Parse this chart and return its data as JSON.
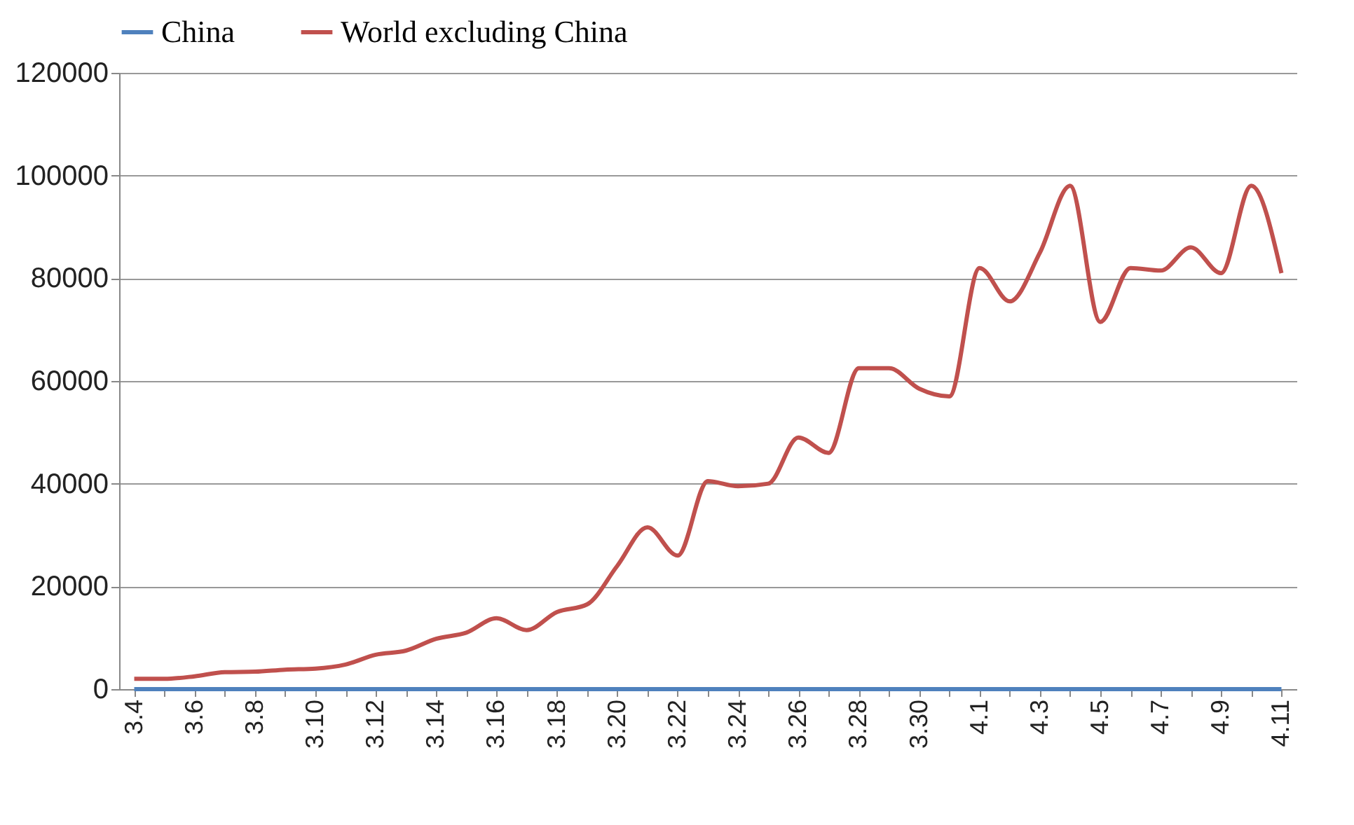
{
  "chart_data": {
    "type": "line",
    "categories": [
      "3.4",
      null,
      "3.6",
      null,
      "3.8",
      null,
      "3.10",
      null,
      "3.12",
      null,
      "3.14",
      null,
      "3.16",
      null,
      "3.18",
      null,
      "3.20",
      null,
      "3.22",
      null,
      "3.24",
      null,
      "3.26",
      null,
      "3.28",
      null,
      "3.30",
      null,
      "4.1",
      null,
      "4.3",
      null,
      "4.5",
      null,
      "4.7",
      null,
      "4.9",
      null,
      "4.11"
    ],
    "series": [
      {
        "name": "China",
        "color": "#4f81bd",
        "values": [
          0,
          0,
          0,
          0,
          0,
          0,
          0,
          0,
          0,
          0,
          0,
          0,
          0,
          0,
          0,
          0,
          0,
          0,
          0,
          0,
          0,
          0,
          0,
          0,
          0,
          0,
          0,
          0,
          0,
          0,
          0,
          0,
          0,
          0,
          0,
          0,
          0,
          0,
          0
        ]
      },
      {
        "name": "World excluding China",
        "color": "#c0504d",
        "values": [
          2000,
          2000,
          2500,
          3300,
          3400,
          3800,
          4000,
          4800,
          6700,
          7500,
          9800,
          11000,
          13800,
          11500,
          15000,
          16500,
          24000,
          31500,
          26000,
          40500,
          39500,
          40000,
          49000,
          46000,
          62500,
          62500,
          58500,
          57000,
          82000,
          75500,
          85000,
          98000,
          71500,
          82000,
          81500,
          86000,
          81000,
          98000,
          81000
        ]
      }
    ],
    "ylim": [
      0,
      120000
    ],
    "yticks": [
      0,
      20000,
      40000,
      60000,
      80000,
      100000,
      120000
    ],
    "grid": "y",
    "legend": "top",
    "marker": "none",
    "line_style": "solid"
  }
}
